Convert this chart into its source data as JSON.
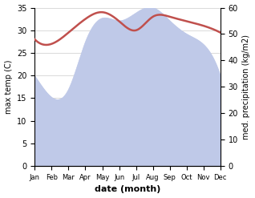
{
  "months": [
    "Jan",
    "Feb",
    "Mar",
    "Apr",
    "May",
    "Jun",
    "Jul",
    "Aug",
    "Sep",
    "Oct",
    "Nov",
    "Dec"
  ],
  "temp": [
    28.0,
    27.0,
    29.5,
    32.5,
    34.0,
    32.0,
    30.0,
    33.0,
    33.0,
    32.0,
    31.0,
    29.5
  ],
  "precip_right": [
    34,
    26,
    29,
    47,
    56,
    55,
    58,
    60,
    55,
    50,
    46,
    34
  ],
  "temp_color": "#c0504d",
  "precip_fill_color": "#bfc9e8",
  "ylim_left": [
    0,
    35
  ],
  "ylim_right": [
    0,
    60
  ],
  "yticks_left": [
    0,
    5,
    10,
    15,
    20,
    25,
    30,
    35
  ],
  "yticks_right": [
    0,
    10,
    20,
    30,
    40,
    50,
    60
  ],
  "xlabel": "date (month)",
  "ylabel_left": "max temp (C)",
  "ylabel_right": "med. precipitation (kg/m2)",
  "bg_color": "#ffffff",
  "grid_color": "#cccccc"
}
